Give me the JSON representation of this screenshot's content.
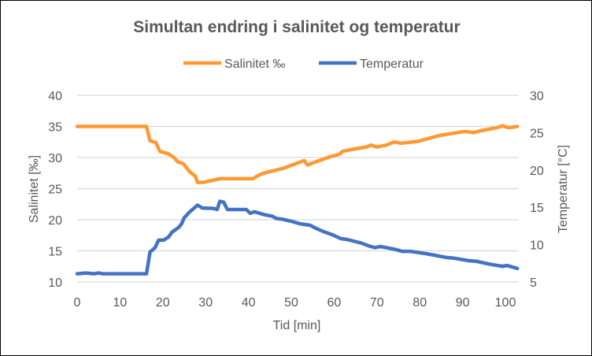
{
  "chart_data": {
    "type": "line",
    "title": "Simultan endring i salinitet og temperatur",
    "xlabel": "Tid [min]",
    "ylabel": "Salinitet [‰]",
    "y2label": "Temperatur [°C]",
    "xlim": [
      0,
      103
    ],
    "ylim": [
      10,
      40
    ],
    "y2lim": [
      5,
      30
    ],
    "xticks": [
      0,
      10,
      20,
      30,
      40,
      50,
      60,
      70,
      80,
      90,
      100
    ],
    "yticks": [
      10,
      15,
      20,
      25,
      30,
      35,
      40
    ],
    "y2ticks": [
      5,
      10,
      15,
      20,
      25,
      30
    ],
    "grid": true,
    "legend": "top",
    "series": [
      {
        "name": "Salinitet ‰",
        "axis": "left",
        "color": "#FF9933",
        "x": [
          0,
          16.2,
          17,
          18.4,
          19.3,
          21.3,
          22.6,
          23.5,
          24.8,
          26.3,
          27.6,
          28.1,
          29.4,
          33.3,
          41,
          42.8,
          44.7,
          48.3,
          51,
          53,
          53.8,
          55.7,
          59.4,
          61.2,
          62,
          65,
          67.6,
          68.6,
          70,
          72.2,
          74,
          75.6,
          79.6,
          83.3,
          85,
          88.8,
          90.6,
          92.5,
          94.3,
          98,
          99.3,
          100.7,
          102.8
        ],
        "y": [
          35,
          35,
          32.7,
          32.4,
          31,
          30.6,
          30,
          29.3,
          29,
          27.7,
          27,
          26,
          26,
          26.6,
          26.6,
          27.3,
          27.7,
          28.3,
          29,
          29.5,
          28.8,
          29.3,
          30.2,
          30.5,
          31,
          31.4,
          31.7,
          32,
          31.7,
          32,
          32.5,
          32.3,
          32.6,
          33.3,
          33.6,
          34,
          34.2,
          34,
          34.3,
          34.8,
          35.1,
          34.8,
          35
        ]
      },
      {
        "name": "Temperatur",
        "axis": "right",
        "color": "#4472C4",
        "x": [
          0,
          2,
          4,
          5,
          6,
          10,
          16.2,
          17,
          18.2,
          19,
          20.2,
          21.3,
          22.2,
          23.7,
          24.3,
          25,
          26.3,
          28.1,
          29.2,
          31.8,
          32.7,
          33.3,
          34.2,
          35.1,
          39.5,
          40.4,
          41.4,
          43.8,
          45.6,
          46.5,
          48,
          50.2,
          52,
          54.4,
          55.7,
          57.5,
          59.7,
          61.6,
          63,
          66.4,
          68,
          69.5,
          70.8,
          74,
          75.9,
          77.8,
          81.4,
          83.3,
          86,
          87.9,
          91.5,
          93.4,
          96.1,
          99.3,
          100.4,
          102.8
        ],
        "y": [
          6.1,
          6.2,
          6.1,
          6.2,
          6.1,
          6.1,
          6.1,
          9.0,
          9.6,
          10.6,
          10.6,
          11,
          11.7,
          12.3,
          12.7,
          13.6,
          14.4,
          15.3,
          14.9,
          14.85,
          14.7,
          15.8,
          15.7,
          14.7,
          14.7,
          14.2,
          14.4,
          14,
          13.8,
          13.5,
          13.4,
          13.1,
          12.8,
          12.6,
          12.2,
          11.75,
          11.3,
          10.8,
          10.7,
          10.2,
          9.85,
          9.6,
          9.75,
          9.4,
          9.1,
          9.1,
          8.8,
          8.6,
          8.3,
          8.2,
          7.85,
          7.75,
          7.4,
          7.1,
          7.2,
          6.8
        ]
      }
    ]
  }
}
